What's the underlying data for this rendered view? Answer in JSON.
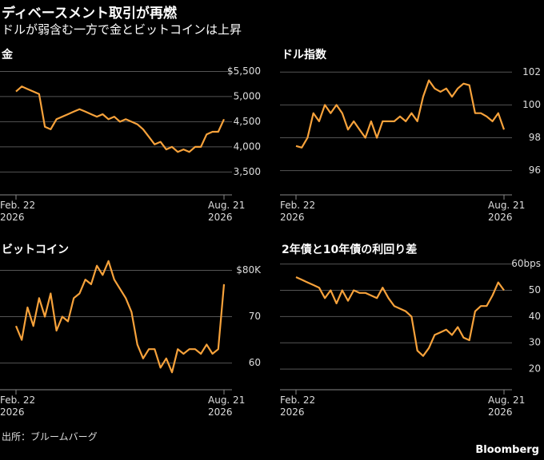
{
  "title": "ディベースメント取引が再燃",
  "subtitle": "ドルが弱含む一方で金とビットコインは上昇",
  "source": "出所：ブルームバーグ",
  "brand": "Bloomberg",
  "chart_data": [
    {
      "type": "line",
      "title": "金",
      "color": "#f7a23b",
      "x": [
        0,
        5,
        10,
        15,
        20,
        25,
        30,
        35,
        40,
        45,
        50,
        55,
        60,
        65,
        70,
        75,
        80,
        85,
        90,
        95,
        100,
        105,
        110,
        115,
        120,
        125,
        130,
        135,
        140,
        145,
        150,
        155,
        160,
        165,
        170,
        175,
        180
      ],
      "values": [
        5100,
        5200,
        5150,
        5100,
        5050,
        4400,
        4350,
        4550,
        4600,
        4650,
        4700,
        4750,
        4700,
        4650,
        4600,
        4650,
        4550,
        4600,
        4500,
        4550,
        4500,
        4450,
        4350,
        4200,
        4050,
        4100,
        3950,
        4000,
        3900,
        3950,
        3900,
        4000,
        4000,
        4250,
        4300,
        4300,
        4550
      ],
      "xlim": [
        0,
        180
      ],
      "xticks": [
        {
          "value": 0,
          "label": "Feb. 22\n2026"
        },
        {
          "value": 180,
          "label": "Aug. 21\n2026"
        }
      ],
      "ylim": [
        3300,
        5650
      ],
      "yticks": [
        {
          "value": 3500,
          "label": "3,500"
        },
        {
          "value": 4000,
          "label": "4,000"
        },
        {
          "value": 4500,
          "label": "4,500"
        },
        {
          "value": 5000,
          "label": "5,000"
        },
        {
          "value": 5500,
          "label": "$5,500"
        }
      ],
      "grid": true
    },
    {
      "type": "line",
      "title": "ドル指数",
      "color": "#f7a23b",
      "x": [
        0,
        5,
        10,
        15,
        20,
        25,
        30,
        35,
        40,
        45,
        50,
        55,
        60,
        65,
        70,
        75,
        80,
        85,
        90,
        95,
        100,
        105,
        110,
        115,
        120,
        125,
        130,
        135,
        140,
        145,
        150,
        155,
        160,
        165,
        170,
        175,
        180
      ],
      "values": [
        97.5,
        97.4,
        98,
        99.5,
        99,
        100,
        99.5,
        100,
        99.5,
        98.5,
        99,
        98.5,
        98,
        99,
        98,
        99,
        99,
        99,
        99.3,
        99,
        99.5,
        99,
        100.5,
        101.5,
        101,
        100.8,
        101,
        100.5,
        101,
        101.3,
        101.2,
        99.5,
        99.5,
        99.3,
        99,
        99.5,
        98.5
      ],
      "xlim": [
        0,
        180
      ],
      "xticks": [
        {
          "value": 0,
          "label": "Feb. 22\n2026"
        },
        {
          "value": 180,
          "label": "Aug. 21\n2026"
        }
      ],
      "ylim": [
        95.3,
        102.5
      ],
      "yticks": [
        96,
        98,
        100,
        102
      ],
      "grid": true
    },
    {
      "type": "line",
      "title": "ビットコイン",
      "color": "#f7a23b",
      "x": [
        0,
        5,
        10,
        15,
        20,
        25,
        30,
        35,
        40,
        45,
        50,
        55,
        60,
        65,
        70,
        75,
        80,
        85,
        90,
        95,
        100,
        105,
        110,
        115,
        120,
        125,
        130,
        135,
        140,
        145,
        150,
        155,
        160,
        165,
        170,
        175,
        180
      ],
      "values": [
        68,
        65,
        72,
        68,
        74,
        70,
        75,
        67,
        70,
        69,
        74,
        75,
        78,
        77,
        81,
        79,
        82,
        78,
        76,
        74,
        71,
        64,
        61,
        63,
        63,
        59,
        61,
        58,
        63,
        62,
        63,
        63,
        62,
        64,
        62,
        63,
        77
      ],
      "xlim": [
        0,
        180
      ],
      "xticks": [
        {
          "value": 0,
          "label": "Feb. 22\n2026"
        },
        {
          "value": 180,
          "label": "Aug. 21\n2026"
        }
      ],
      "ylim": [
        57,
        82.5
      ],
      "yticks": [
        60,
        70,
        {
          "value": 80,
          "label": "$80K"
        }
      ],
      "grid": true
    },
    {
      "type": "line",
      "title": "2年債と10年債の利回り差",
      "color": "#f7a23b",
      "x": [
        0,
        5,
        10,
        15,
        20,
        25,
        30,
        35,
        40,
        45,
        50,
        55,
        60,
        65,
        70,
        75,
        80,
        85,
        90,
        95,
        100,
        105,
        110,
        115,
        120,
        125,
        130,
        135,
        140,
        145,
        150,
        155,
        160,
        165,
        170,
        175,
        180
      ],
      "values": [
        55,
        54,
        53,
        52,
        51,
        47,
        50,
        45,
        50,
        46,
        50,
        49,
        49,
        48,
        47,
        51,
        47,
        44,
        43,
        42,
        40,
        27,
        25,
        28,
        33,
        34,
        35,
        33,
        36,
        32,
        31,
        42,
        44,
        44,
        48,
        53,
        50
      ],
      "xlim": [
        0,
        180
      ],
      "xticks": [
        {
          "value": 0,
          "label": "Feb. 22\n2026"
        },
        {
          "value": 180,
          "label": "Aug. 21\n2026"
        }
      ],
      "ylim": [
        17,
        62
      ],
      "yticks": [
        20,
        30,
        40,
        50,
        {
          "value": 60,
          "label": "60bps"
        }
      ],
      "grid": true
    }
  ]
}
